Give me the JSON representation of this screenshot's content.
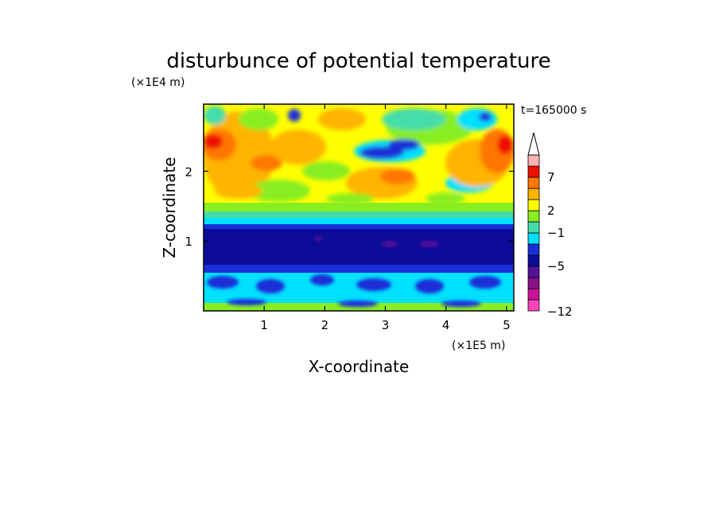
{
  "chart_data": {
    "type": "heatmap",
    "title": "disturbunce of potential temperature",
    "xlabel": "X-coordinate",
    "ylabel": "Z-coordinate",
    "x_scale_label": "(×1E5 m)",
    "y_scale_label": "(×1E4 m)",
    "time_label": "t=165000 s",
    "xlim": [
      0,
      5.12
    ],
    "ylim": [
      0,
      2.96
    ],
    "xticks": [
      {
        "value": 1,
        "label": "1"
      },
      {
        "value": 2,
        "label": "2"
      },
      {
        "value": 3,
        "label": "3"
      },
      {
        "value": 4,
        "label": "4"
      },
      {
        "value": 5,
        "label": "5"
      }
    ],
    "yticks": [
      {
        "value": 1,
        "label": "1"
      },
      {
        "value": 2,
        "label": "2"
      }
    ],
    "colorbar": {
      "levels": [
        {
          "color": "#ff44bb"
        },
        {
          "color": "#cc1199"
        },
        {
          "color": "#881188"
        },
        {
          "color": "#551199",
          "label": "−5"
        },
        {
          "color": "#0c0c99"
        },
        {
          "color": "#1a2ed8"
        },
        {
          "color": "#00e0ff",
          "label": "−1"
        },
        {
          "color": "#44ddaa"
        },
        {
          "color": "#88ee22",
          "label": "2"
        },
        {
          "color": "#ffff00"
        },
        {
          "color": "#ffb400"
        },
        {
          "color": "#ff7700",
          "label": "7"
        },
        {
          "color": "#ee1100"
        },
        {
          "color": "#ffb2b2"
        }
      ],
      "min_label": "−12",
      "extend": "max"
    },
    "field_summary": [
      {
        "z_range": [
          0,
          0.05
        ],
        "description": "green/cyan near surface"
      },
      {
        "z_range": [
          0.05,
          0.5
        ],
        "value_class": "cyan with blue patches"
      },
      {
        "z_range": [
          0.5,
          1.25
        ],
        "value_class": "dark blue, purple spots near x=3-4"
      },
      {
        "z_range": [
          1.25,
          1.5
        ],
        "value_class": "blue to cyan to green transition"
      },
      {
        "z_range": [
          1.5,
          2.96
        ],
        "value_class": "green/yellow/orange with red maxima near x=0.1 and x=5; blue patch near x=2.6-3.5, z=2.4"
      }
    ]
  }
}
